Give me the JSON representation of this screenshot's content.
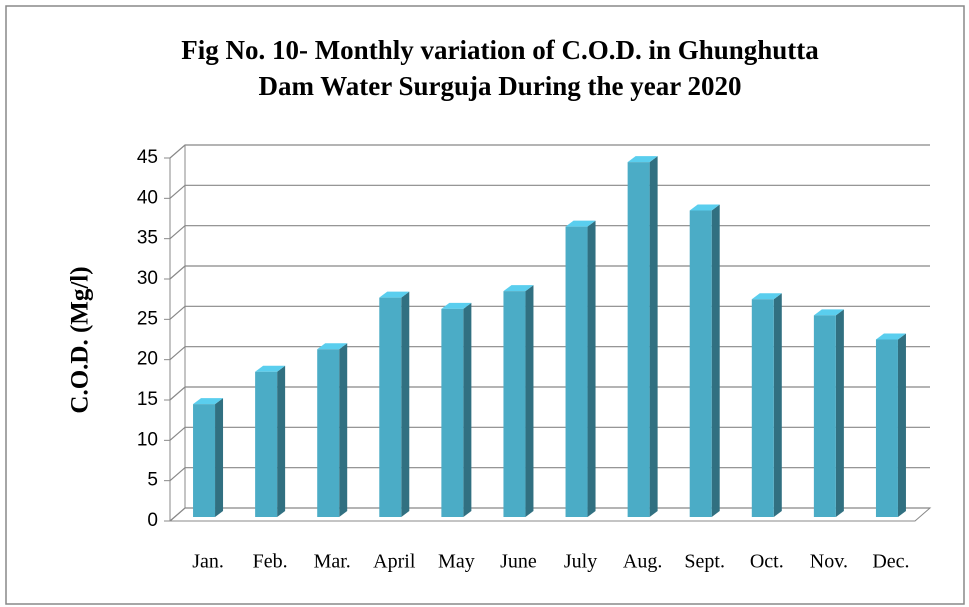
{
  "chart_data": {
    "type": "bar3d",
    "title": [
      "Fig No. 10- Monthly variation of C.O.D. in Ghunghutta",
      "Dam Water Surguja During the year 2020"
    ],
    "ylabel": "C.O.D. (Mg/l)",
    "categories": [
      "Jan.",
      "Feb.",
      "Mar.",
      "April",
      "May",
      "June",
      "July",
      "Aug.",
      "Sept.",
      "Oct.",
      "Nov.",
      "Dec."
    ],
    "values": [
      14,
      18,
      20.8,
      27.2,
      25.8,
      28,
      36,
      44,
      38,
      27,
      25,
      22
    ],
    "color": "#4bacc6",
    "ylim": [
      0,
      45
    ],
    "yticks": [
      0,
      5,
      10,
      15,
      20,
      25,
      30,
      35,
      40,
      45
    ],
    "grid": true
  }
}
